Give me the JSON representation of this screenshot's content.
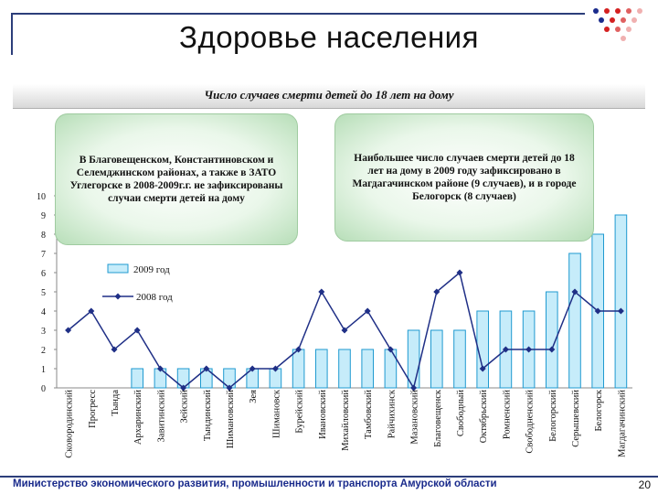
{
  "slide": {
    "title": "Здоровье населения",
    "footer": "Министерство экономического развития, промышленности и транспорта Амурской области",
    "page_number": "20"
  },
  "callouts": {
    "left": "В Благовещенском, Константиновском и Селемджинском районах, а также в ЗАТО Углегорске в 2008-2009г.г. не зафиксированы случаи смерти детей на дому",
    "right": "Наибольшее число случаев смерти детей до 18 лет на дому в 2009 году зафиксировано в Магдагачинском районе (9 случаев), и в городе Белогорск (8 случаев)"
  },
  "colors": {
    "bar_fill": "#c6ecfa",
    "bar_stroke": "#1f9ad0",
    "line": "#1f2f86",
    "accent": "#2c3e7a"
  },
  "chart_data": {
    "type": "bar+line",
    "title": "Число случаев смерти детей до 18 лет на дому",
    "categories": [
      "Сковородинский",
      "Прогресс",
      "Тында",
      "Архаринский",
      "Завитинский",
      "Зейский",
      "Тындинский",
      "Шимановский",
      "Зея",
      "Шимановск",
      "Бурейский",
      "Ивановский",
      "Михайловский",
      "Тамбовский",
      "Райчихинск",
      "Мазановский",
      "Благовещенск",
      "Свободный",
      "Октябрьский",
      "Ромненский",
      "Свободненский",
      "Белогорский",
      "Серышевский",
      "Белогорск",
      "Магдагачинский"
    ],
    "series": [
      {
        "name": "2009 год",
        "type": "bar",
        "values": [
          0,
          0,
          0,
          1,
          1,
          1,
          1,
          1,
          1,
          1,
          2,
          2,
          2,
          2,
          2,
          3,
          3,
          3,
          4,
          4,
          4,
          5,
          7,
          8,
          9
        ]
      },
      {
        "name": "2008 год",
        "type": "line",
        "values": [
          3,
          4,
          2,
          3,
          1,
          0,
          1,
          0,
          1,
          1,
          2,
          5,
          3,
          4,
          2,
          0,
          5,
          6,
          1,
          2,
          2,
          2,
          5,
          4,
          4
        ]
      }
    ],
    "y_ticks": [
      "0",
      "1",
      "2",
      "3",
      "4",
      "5",
      "6",
      "7",
      "8",
      "9",
      "10"
    ],
    "ylim": [
      0,
      10
    ],
    "legend_position": "top-left"
  }
}
